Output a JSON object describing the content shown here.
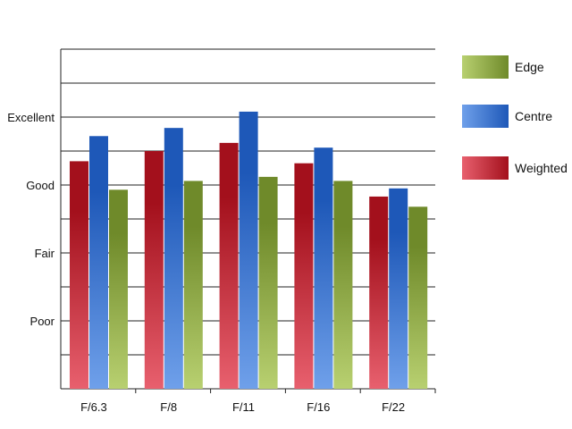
{
  "chart_data": {
    "type": "bar",
    "categories": [
      "F/6.3",
      "F/8",
      "F/11",
      "F/16",
      "F/22"
    ],
    "y_tick_labels": [
      {
        "value": 1,
        "label": "Poor"
      },
      {
        "value": 2,
        "label": "Fair"
      },
      {
        "value": 3,
        "label": "Good"
      },
      {
        "value": 4,
        "label": "Excellent"
      }
    ],
    "ylim": [
      0,
      5
    ],
    "grid": true,
    "legend_position": "right",
    "series": [
      {
        "name": "Weighted",
        "color": "#c8202e",
        "values": [
          3.35,
          3.5,
          3.62,
          3.32,
          2.83
        ]
      },
      {
        "name": "Centre",
        "color": "#2a68c6",
        "values": [
          3.72,
          3.84,
          4.08,
          3.55,
          2.95
        ]
      },
      {
        "name": "Edge",
        "color": "#7e9a3a",
        "values": [
          2.93,
          3.06,
          3.12,
          3.06,
          2.68
        ]
      }
    ],
    "legend_order": [
      "Edge",
      "Centre",
      "Weighted"
    ]
  }
}
